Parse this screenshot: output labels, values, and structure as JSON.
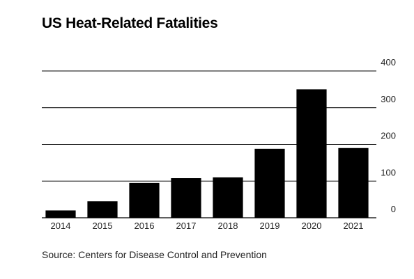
{
  "chart_data": {
    "type": "bar",
    "title": "US Heat-Related Fatalities",
    "source": "Source: Centers for Disease Control and Prevention",
    "categories": [
      "2014",
      "2015",
      "2016",
      "2017",
      "2018",
      "2019",
      "2020",
      "2021"
    ],
    "values": [
      20,
      45,
      95,
      108,
      110,
      188,
      350,
      190
    ],
    "ylim": [
      0,
      400
    ],
    "yticks": [
      "0",
      "100",
      "200",
      "300",
      "400"
    ],
    "bar_color": "#000000",
    "grid": true,
    "y_axis_position": "right"
  }
}
